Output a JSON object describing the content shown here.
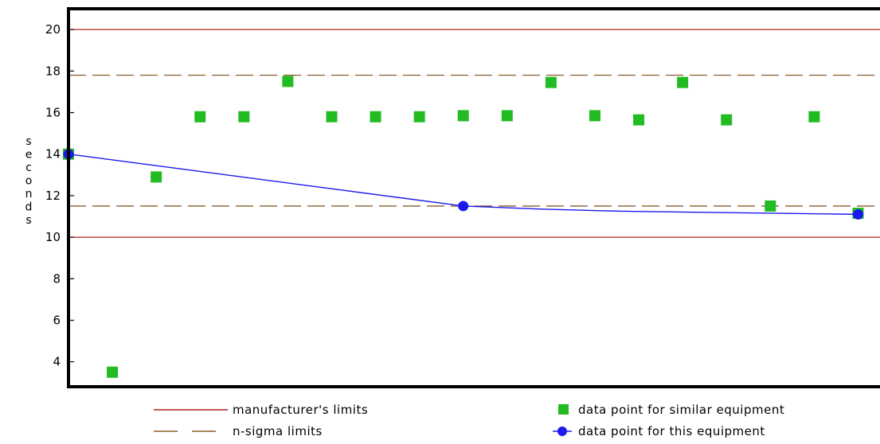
{
  "chart_data": {
    "type": "scatter",
    "title": "",
    "xlabel": "",
    "ylabel": "seconds",
    "ylim": [
      2.8,
      21
    ],
    "xlim": [
      0,
      18.5
    ],
    "yticks": [
      4,
      6,
      8,
      10,
      12,
      14,
      16,
      18,
      20
    ],
    "grid": false,
    "reference_lines": [
      {
        "kind": "manufacturer",
        "y": 20,
        "color": "#b22222"
      },
      {
        "kind": "manufacturer",
        "y": 10,
        "color": "#b22222"
      },
      {
        "kind": "n-sigma",
        "y": 17.8,
        "color": "#8b5a2b"
      },
      {
        "kind": "n-sigma",
        "y": 11.5,
        "color": "#8b5a2b"
      }
    ],
    "series": [
      {
        "name": "data point for similar equipment",
        "color": "#22bb22",
        "marker": "square",
        "x": [
          0,
          1,
          2,
          3,
          4,
          5,
          6,
          7,
          8,
          9,
          10,
          11,
          12,
          13,
          14,
          15,
          16,
          17,
          18
        ],
        "y": [
          14.0,
          3.5,
          12.9,
          15.8,
          15.8,
          17.5,
          15.8,
          15.8,
          15.8,
          15.85,
          15.85,
          17.45,
          15.85,
          15.65,
          17.45,
          15.65,
          11.5,
          15.8,
          11.15
        ]
      },
      {
        "name": "data point for this equipment",
        "color": "#1a1aee",
        "marker": "circle-line",
        "x": [
          0,
          9,
          18
        ],
        "y": [
          14.0,
          11.5,
          11.1
        ],
        "path_y": [
          14.0,
          11.5,
          11.35,
          11.25,
          11.2,
          11.15,
          11.1
        ]
      }
    ],
    "legend": {
      "position": "bottom",
      "items": [
        {
          "label": "manufacturer's limits",
          "symbol": "solid-line",
          "color": "#b22222"
        },
        {
          "label": "data point for similar equipment",
          "symbol": "square",
          "color": "#22bb22"
        },
        {
          "label": "n-sigma limits",
          "symbol": "dashed-line",
          "color": "#8b5a2b"
        },
        {
          "label": "data point for this equipment",
          "symbol": "circle-line",
          "color": "#1a1aee"
        }
      ]
    }
  }
}
